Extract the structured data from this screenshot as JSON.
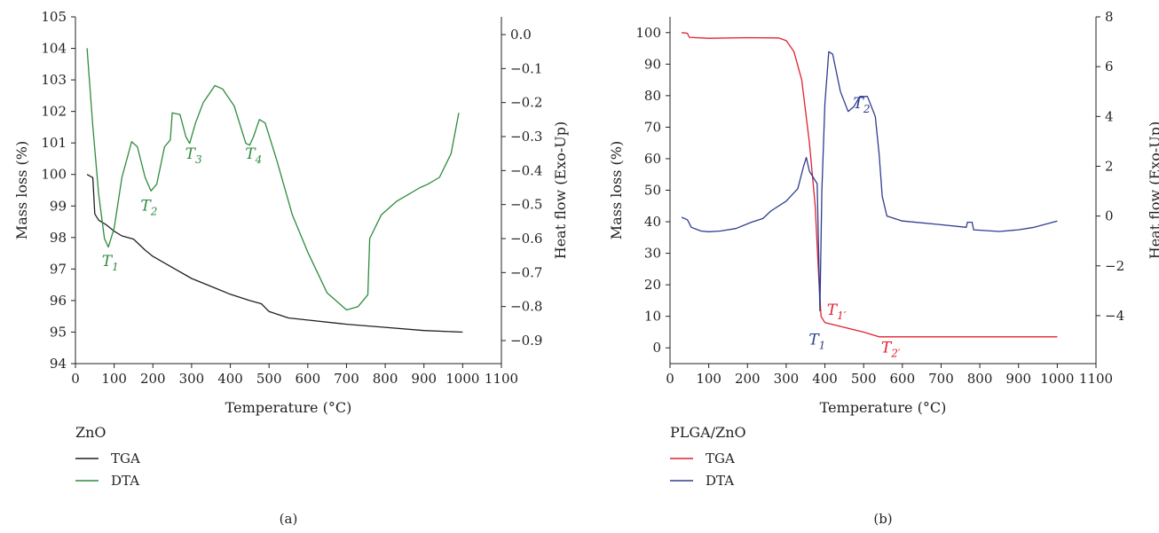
{
  "chart_data": [
    {
      "panel_label": "(a)",
      "type": "line",
      "xlabel": "Temperature (°C)",
      "ylabel_left": "Mass loss (%)",
      "ylabel_right": "Heat flow (Exo-Up)",
      "xlim": [
        0,
        1100
      ],
      "ylim_left": [
        94,
        105
      ],
      "ylim_right": [
        -0.9,
        0.0
      ],
      "x_ticks": [
        0,
        100,
        200,
        300,
        400,
        500,
        600,
        700,
        800,
        900,
        1000,
        1100
      ],
      "y_ticks_left": [
        94,
        95,
        96,
        97,
        98,
        99,
        100,
        101,
        102,
        103,
        104,
        105
      ],
      "y_ticks_right": [
        "0.0",
        "−0.1",
        "−0.2",
        "−0.3",
        "−0.4",
        "−0.5",
        "−0.6",
        "−0.7",
        "−0.8",
        "−0.9"
      ],
      "y_tick_values_right": [
        0.0,
        -0.1,
        -0.2,
        -0.3,
        -0.4,
        -0.5,
        -0.6,
        -0.7,
        -0.8,
        -0.9
      ],
      "legend_title": "ZnO",
      "series": [
        {
          "name": "TGA",
          "axis": "left",
          "color": "#231f20",
          "points": [
            [
              30,
              100.0
            ],
            [
              40,
              99.93
            ],
            [
              45,
              99.9
            ],
            [
              50,
              98.75
            ],
            [
              60,
              98.55
            ],
            [
              80,
              98.4
            ],
            [
              100,
              98.2
            ],
            [
              120,
              98.05
            ],
            [
              150,
              97.95
            ],
            [
              180,
              97.6
            ],
            [
              200,
              97.4
            ],
            [
              250,
              97.05
            ],
            [
              300,
              96.7
            ],
            [
              350,
              96.45
            ],
            [
              400,
              96.2
            ],
            [
              450,
              96.0
            ],
            [
              480,
              95.9
            ],
            [
              500,
              95.65
            ],
            [
              550,
              95.45
            ],
            [
              600,
              95.38
            ],
            [
              700,
              95.25
            ],
            [
              800,
              95.15
            ],
            [
              900,
              95.05
            ],
            [
              1000,
              95.0
            ]
          ]
        },
        {
          "name": "DTA",
          "axis": "right",
          "color": "#2e8b3e",
          "points": [
            [
              30,
              -0.04
            ],
            [
              45,
              -0.27
            ],
            [
              60,
              -0.47
            ],
            [
              75,
              -0.6
            ],
            [
              85,
              -0.625
            ],
            [
              100,
              -0.57
            ],
            [
              120,
              -0.42
            ],
            [
              145,
              -0.315
            ],
            [
              160,
              -0.33
            ],
            [
              180,
              -0.42
            ],
            [
              195,
              -0.46
            ],
            [
              210,
              -0.44
            ],
            [
              230,
              -0.33
            ],
            [
              245,
              -0.31
            ],
            [
              250,
              -0.23
            ],
            [
              270,
              -0.235
            ],
            [
              285,
              -0.3
            ],
            [
              295,
              -0.32
            ],
            [
              310,
              -0.26
            ],
            [
              330,
              -0.2
            ],
            [
              360,
              -0.15
            ],
            [
              380,
              -0.16
            ],
            [
              410,
              -0.21
            ],
            [
              440,
              -0.32
            ],
            [
              450,
              -0.325
            ],
            [
              460,
              -0.3
            ],
            [
              475,
              -0.25
            ],
            [
              490,
              -0.26
            ],
            [
              520,
              -0.37
            ],
            [
              560,
              -0.53
            ],
            [
              600,
              -0.64
            ],
            [
              650,
              -0.76
            ],
            [
              700,
              -0.81
            ],
            [
              730,
              -0.8
            ],
            [
              755,
              -0.765
            ],
            [
              760,
              -0.6
            ],
            [
              790,
              -0.53
            ],
            [
              830,
              -0.49
            ],
            [
              860,
              -0.47
            ],
            [
              890,
              -0.45
            ],
            [
              910,
              -0.44
            ],
            [
              940,
              -0.42
            ],
            [
              970,
              -0.35
            ],
            [
              990,
              -0.23
            ]
          ]
        }
      ],
      "annotations": [
        {
          "text": "T",
          "sub": "1",
          "x": 90,
          "y": 97.1
        },
        {
          "text": "T",
          "sub": "2",
          "x": 190,
          "y": 98.85
        },
        {
          "text": "T",
          "sub": "3",
          "x": 305,
          "y": 100.5
        },
        {
          "text": "T",
          "sub": "4",
          "x": 460,
          "y": 100.5
        }
      ]
    },
    {
      "panel_label": "(b)",
      "type": "line",
      "xlabel": "Temperature (°C)",
      "ylabel_left": "Mass loss (%)",
      "ylabel_right": "Heat flow (Exo-Up)",
      "xlim": [
        0,
        1100
      ],
      "ylim_left": [
        -5,
        105
      ],
      "ylim_right": [
        -5,
        8
      ],
      "x_ticks": [
        0,
        100,
        200,
        300,
        400,
        500,
        600,
        700,
        800,
        900,
        1000,
        1100
      ],
      "y_ticks_left": [
        0,
        10,
        20,
        30,
        40,
        50,
        60,
        70,
        80,
        90,
        100
      ],
      "y_ticks_right": [
        "−4",
        "−2",
        "0",
        "2",
        "4",
        "6",
        "8"
      ],
      "y_tick_values_right": [
        -4,
        -2,
        0,
        2,
        4,
        6,
        8
      ],
      "legend_title": "PLGA/ZnO",
      "series": [
        {
          "name": "TGA",
          "axis": "left",
          "color": "#e0202e",
          "points": [
            [
              30,
              100.0
            ],
            [
              45,
              99.8
            ],
            [
              50,
              98.5
            ],
            [
              100,
              98.2
            ],
            [
              200,
              98.4
            ],
            [
              280,
              98.3
            ],
            [
              300,
              97.5
            ],
            [
              320,
              94.0
            ],
            [
              340,
              85.0
            ],
            [
              360,
              65.0
            ],
            [
              375,
              45.0
            ],
            [
              385,
              20.0
            ],
            [
              390,
              10.0
            ],
            [
              400,
              8.0
            ],
            [
              450,
              6.5
            ],
            [
              500,
              5.0
            ],
            [
              540,
              3.5
            ],
            [
              600,
              3.5
            ],
            [
              800,
              3.5
            ],
            [
              1000,
              3.5
            ]
          ]
        },
        {
          "name": "DTA",
          "axis": "right",
          "color": "#2e3d8f",
          "points": [
            [
              30,
              -0.05
            ],
            [
              45,
              -0.15
            ],
            [
              55,
              -0.45
            ],
            [
              80,
              -0.6
            ],
            [
              100,
              -0.63
            ],
            [
              130,
              -0.6
            ],
            [
              170,
              -0.5
            ],
            [
              210,
              -0.25
            ],
            [
              240,
              -0.1
            ],
            [
              260,
              0.2
            ],
            [
              300,
              0.6
            ],
            [
              330,
              1.1
            ],
            [
              345,
              2.0
            ],
            [
              352,
              2.35
            ],
            [
              360,
              1.8
            ],
            [
              372,
              1.5
            ],
            [
              380,
              1.3
            ],
            [
              387,
              -3.8
            ],
            [
              392,
              1.0
            ],
            [
              400,
              4.5
            ],
            [
              410,
              6.6
            ],
            [
              420,
              6.5
            ],
            [
              440,
              5.0
            ],
            [
              460,
              4.2
            ],
            [
              475,
              4.4
            ],
            [
              490,
              4.8
            ],
            [
              510,
              4.8
            ],
            [
              530,
              4.0
            ],
            [
              540,
              2.5
            ],
            [
              548,
              0.8
            ],
            [
              560,
              0.0
            ],
            [
              600,
              -0.2
            ],
            [
              700,
              -0.35
            ],
            [
              765,
              -0.45
            ],
            [
              768,
              -0.25
            ],
            [
              780,
              -0.25
            ],
            [
              784,
              -0.55
            ],
            [
              850,
              -0.62
            ],
            [
              900,
              -0.55
            ],
            [
              940,
              -0.45
            ],
            [
              1000,
              -0.2
            ]
          ]
        }
      ],
      "annotations": [
        {
          "text": "T",
          "sub": "1′",
          "x": 430,
          "y": 10.5,
          "color": "#e0202e"
        },
        {
          "text": "T",
          "sub": "1",
          "x": 380,
          "y": 1.0,
          "color": "#2e3d8f"
        },
        {
          "text": "T",
          "sub": "2",
          "x": 495,
          "y": 76.0,
          "color": "#2e3d8f"
        },
        {
          "text": "T",
          "sub": "2′",
          "x": 570,
          "y": -1.5,
          "color": "#e0202e"
        }
      ]
    }
  ]
}
